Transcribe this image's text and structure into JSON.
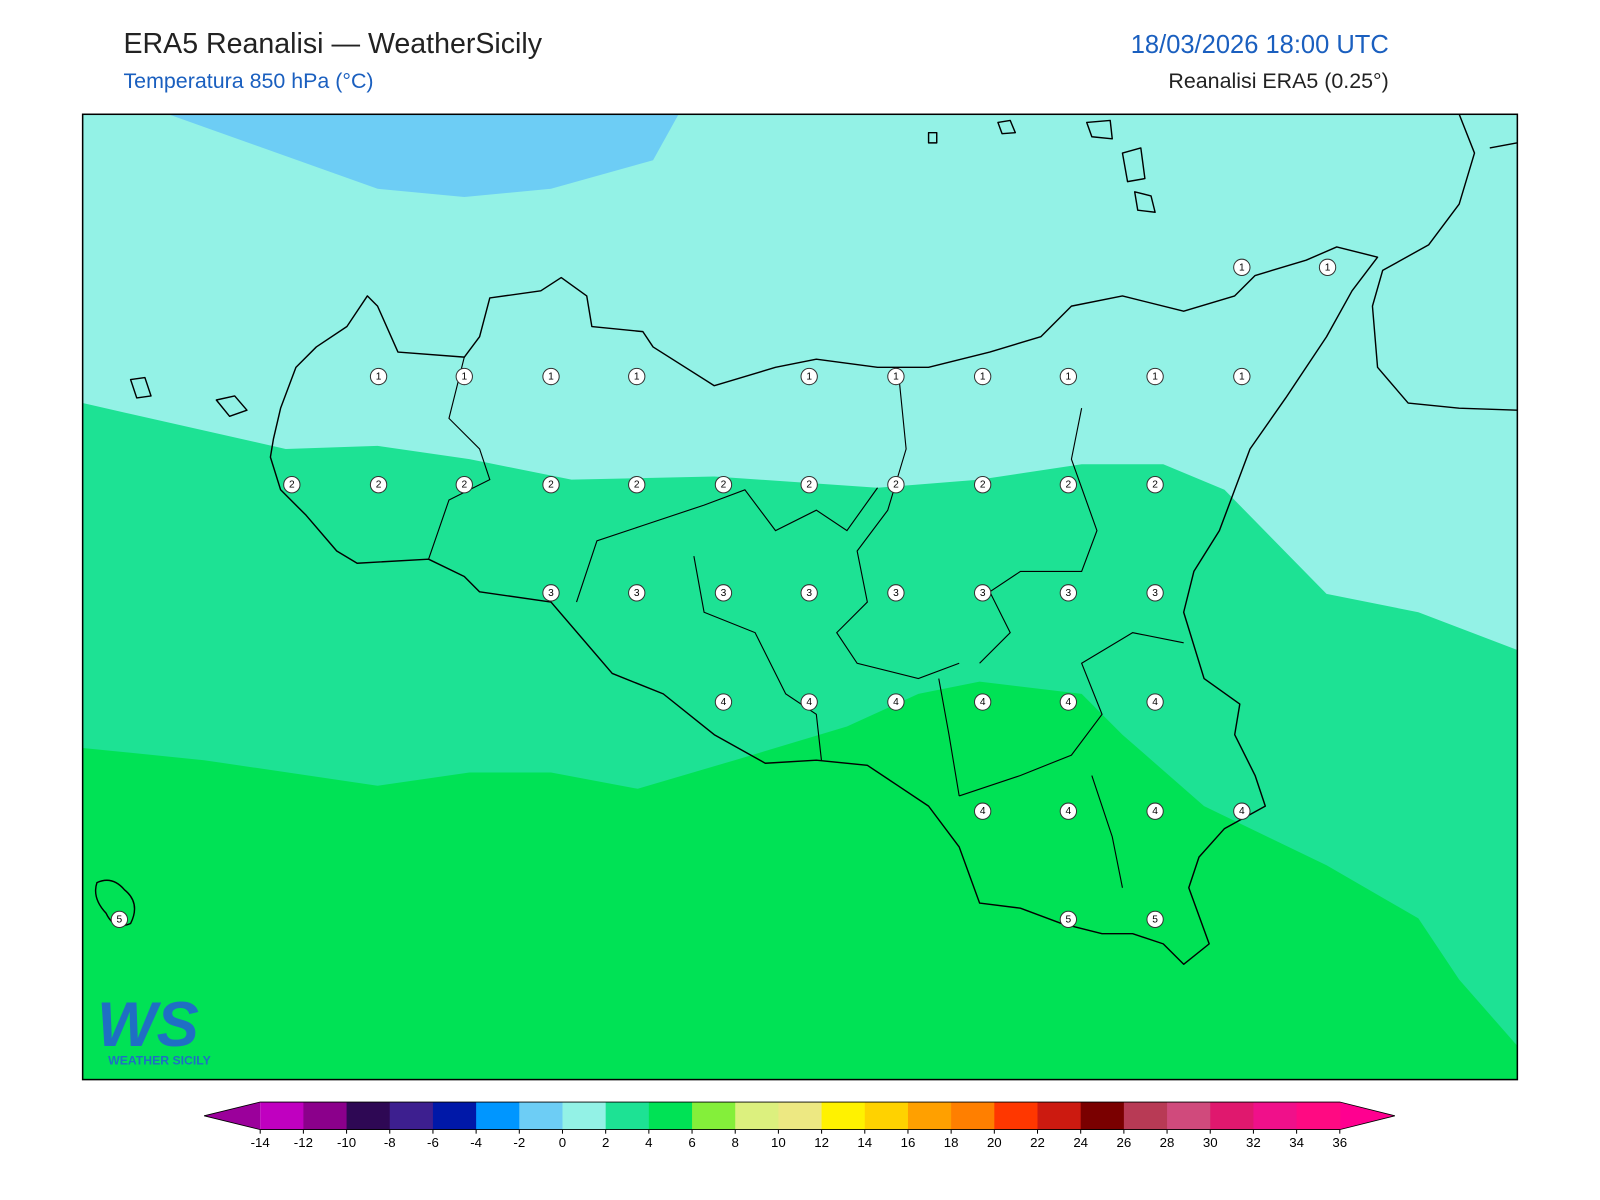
{
  "header": {
    "title": "ERA5 Reanalisi — WeatherSicily",
    "subtitle": "Temperatura 850 hPa (°C)",
    "datetime": "18/03/2026 18:00 UTC",
    "source": "Reanalisi ERA5 (0.25°)"
  },
  "stations": {
    "values": [
      1,
      1,
      1,
      1,
      1,
      1,
      1,
      1,
      1,
      1,
      1,
      1,
      2,
      2,
      2,
      2,
      2,
      2,
      2,
      2,
      2,
      2,
      2,
      3,
      3,
      3,
      3,
      3,
      3,
      3,
      3,
      4,
      4,
      4,
      4,
      4,
      4,
      4,
      4,
      4,
      4,
      5,
      5,
      5
    ]
  },
  "colorbar": {
    "ticks": [
      -14,
      -12,
      -10,
      -8,
      -6,
      -4,
      -2,
      0,
      2,
      4,
      6,
      8,
      10,
      12,
      14,
      16,
      18,
      20,
      22,
      24,
      26,
      28,
      30,
      32,
      34,
      36
    ],
    "colors": [
      "#c000c0",
      "#8b008b",
      "#2e0854",
      "#3d1f8f",
      "#0018a8",
      "#0096ff",
      "#6dcdf5",
      "#93f2e6",
      "#1de294",
      "#00e255",
      "#84ef3a",
      "#dcf07e",
      "#ede882",
      "#fff200",
      "#ffd200",
      "#ffa000",
      "#ff7f00",
      "#ff3700",
      "#cc1a10",
      "#7a0000",
      "#b83a55",
      "#d04a7c",
      "#e0186e",
      "#f0108a",
      "#ff0a82"
    ],
    "under_color": "#9b009b",
    "over_color": "#ff0090"
  },
  "logo": {
    "mark": "WS",
    "text": "WEATHER SICILY"
  }
}
